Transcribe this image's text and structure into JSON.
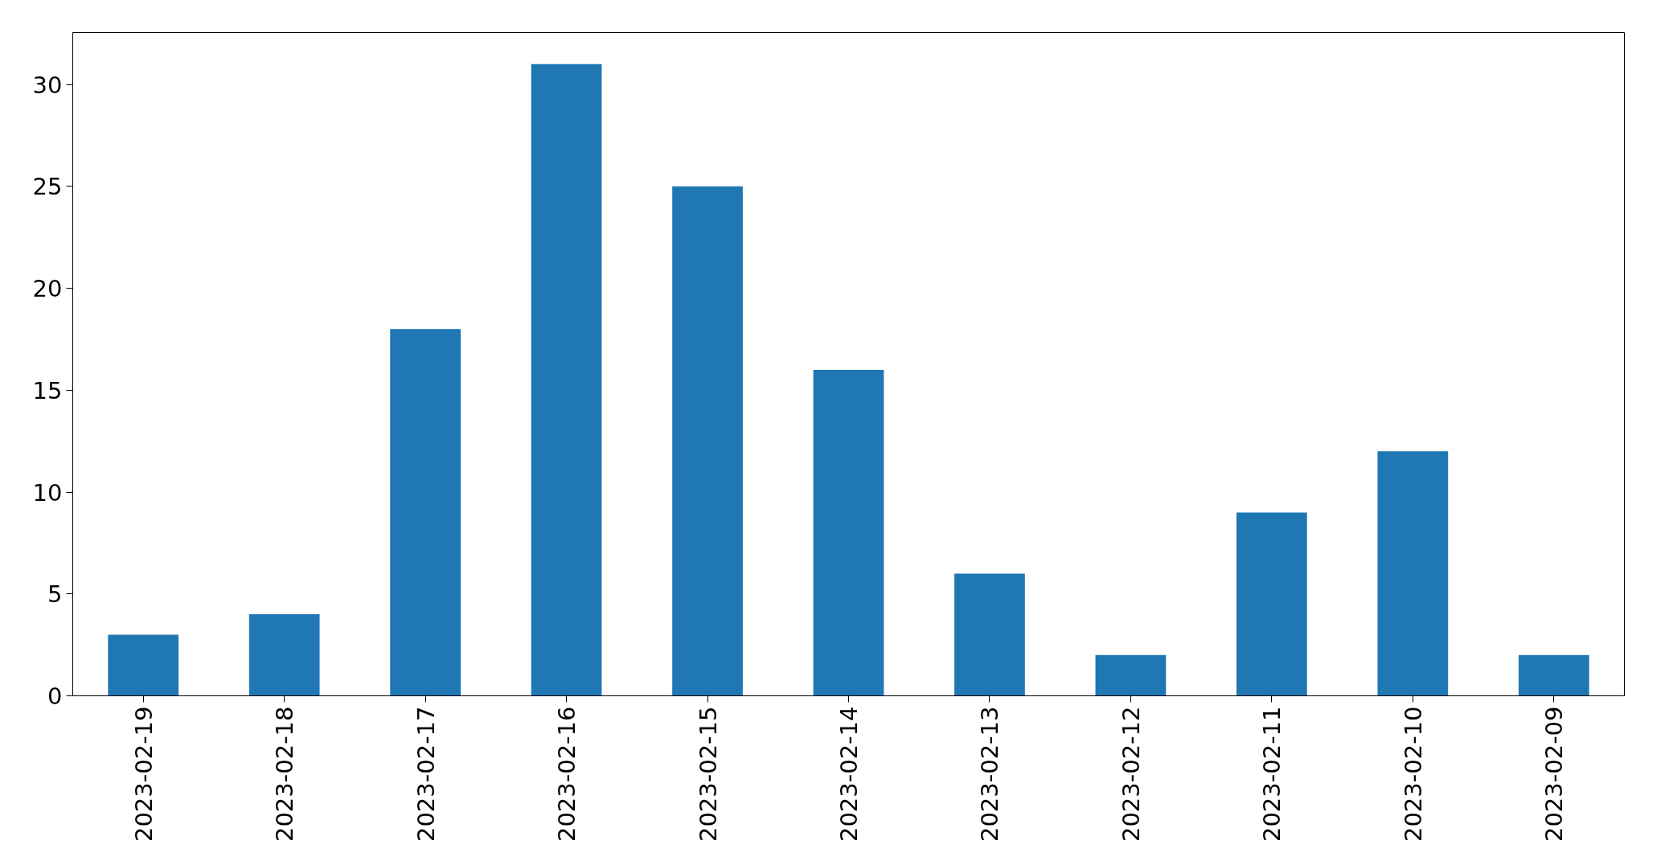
{
  "chart_data": {
    "type": "bar",
    "categories": [
      "2023-02-19",
      "2023-02-18",
      "2023-02-17",
      "2023-02-16",
      "2023-02-15",
      "2023-02-14",
      "2023-02-13",
      "2023-02-12",
      "2023-02-11",
      "2023-02-10",
      "2023-02-09"
    ],
    "values": [
      3,
      4,
      18,
      31,
      25,
      16,
      6,
      2,
      9,
      12,
      2
    ],
    "color": "#1f77b4",
    "ylim": [
      0,
      32.55
    ],
    "yticks": [
      0,
      5,
      10,
      15,
      20,
      25,
      30
    ],
    "grid": false
  }
}
